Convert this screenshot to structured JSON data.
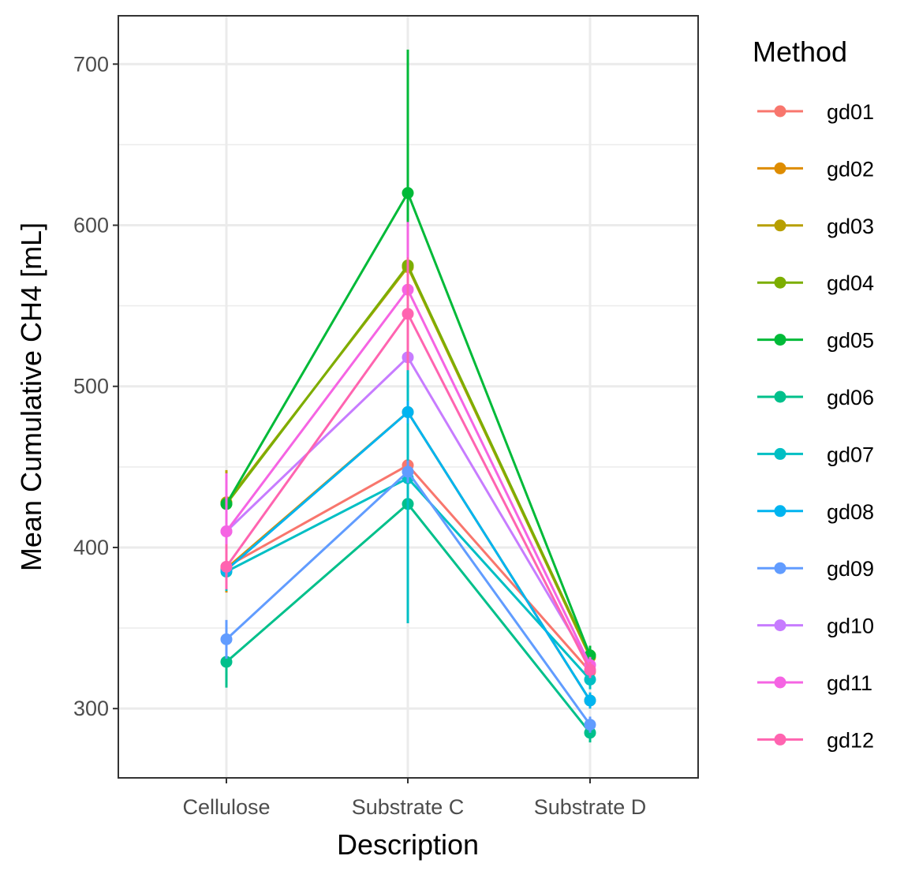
{
  "chart_data": {
    "type": "line",
    "title": "",
    "xlabel": "Description",
    "ylabel": "Mean Cumulative CH4 [mL]",
    "categories": [
      "Cellulose",
      "Substrate C",
      "Substrate D"
    ],
    "ylim": [
      257,
      730
    ],
    "y_major_ticks": [
      300,
      400,
      500,
      600,
      700
    ],
    "y_minor_ticks": [
      350,
      450,
      550,
      650
    ],
    "grid": true,
    "error_bars": true,
    "legend": {
      "title": "Method",
      "position": "right"
    },
    "series": [
      {
        "name": "gd01",
        "color": "#F8766D",
        "values": [
          388,
          451,
          323
        ],
        "lower": [
          374,
          354,
          318
        ],
        "upper": [
          400,
          548,
          328
        ]
      },
      {
        "name": "gd02",
        "color": "#DE8C00",
        "values": [
          387,
          484,
          305
        ],
        "lower": [
          372,
          478,
          300
        ],
        "upper": [
          402,
          490,
          310
        ]
      },
      {
        "name": "gd03",
        "color": "#B79F00",
        "values": [
          428,
          574,
          332
        ],
        "lower": [
          408,
          551,
          326
        ],
        "upper": [
          448,
          597,
          338
        ]
      },
      {
        "name": "gd04",
        "color": "#7CAE00",
        "values": [
          427,
          575,
          333
        ],
        "lower": [
          409,
          552,
          327
        ],
        "upper": [
          445,
          598,
          339
        ]
      },
      {
        "name": "gd05",
        "color": "#00BA38",
        "values": [
          427,
          620,
          333
        ],
        "lower": [
          413,
          531,
          327
        ],
        "upper": [
          441,
          709,
          339
        ]
      },
      {
        "name": "gd06",
        "color": "#00C08B",
        "values": [
          329,
          427,
          285
        ],
        "lower": [
          313,
          418,
          279
        ],
        "upper": [
          345,
          436,
          291
        ]
      },
      {
        "name": "gd07",
        "color": "#00BFC4",
        "values": [
          385,
          443,
          318
        ],
        "lower": [
          373,
          353,
          312
        ],
        "upper": [
          397,
          533,
          324
        ]
      },
      {
        "name": "gd08",
        "color": "#00B4F0",
        "values": [
          386,
          484,
          305
        ],
        "lower": [
          376,
          477,
          300
        ],
        "upper": [
          396,
          491,
          310
        ]
      },
      {
        "name": "gd09",
        "color": "#619CFF",
        "values": [
          343,
          447,
          290
        ],
        "lower": [
          331,
          440,
          285
        ],
        "upper": [
          355,
          454,
          295
        ]
      },
      {
        "name": "gd10",
        "color": "#C77CFF",
        "values": [
          410,
          518,
          327
        ],
        "lower": [
          400,
          512,
          322
        ],
        "upper": [
          420,
          524,
          332
        ]
      },
      {
        "name": "gd11",
        "color": "#F564E3",
        "values": [
          410,
          560,
          327
        ],
        "lower": [
          374,
          518,
          322
        ],
        "upper": [
          446,
          602,
          332
        ]
      },
      {
        "name": "gd12",
        "color": "#FF64B0",
        "values": [
          388,
          545,
          324
        ],
        "lower": [
          374,
          510,
          319
        ],
        "upper": [
          402,
          580,
          329
        ]
      }
    ]
  }
}
